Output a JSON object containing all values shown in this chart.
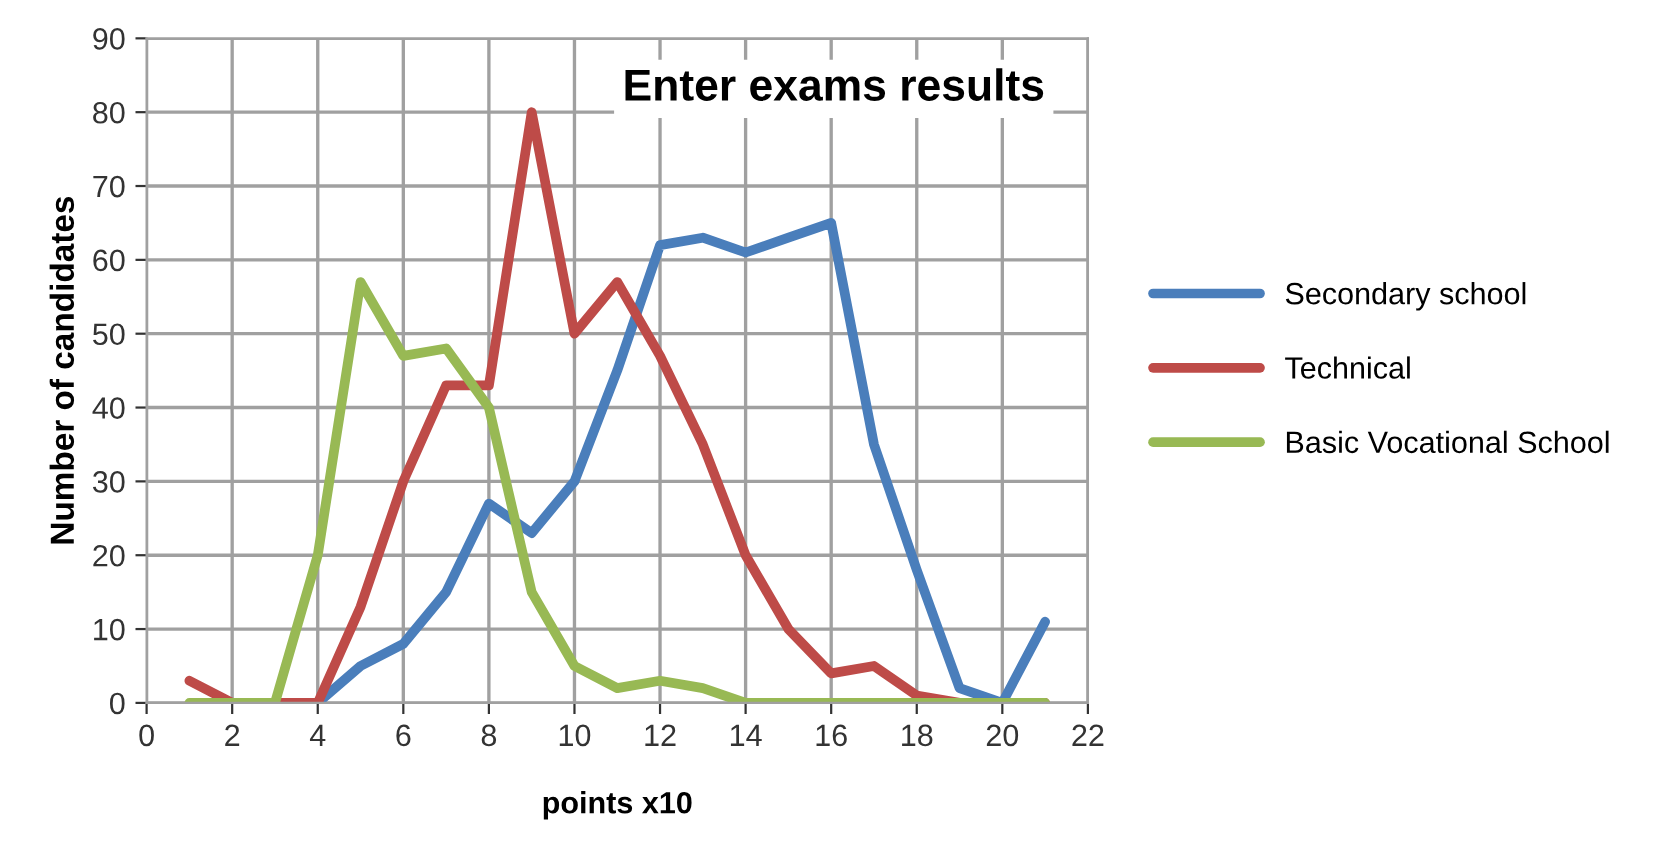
{
  "chart_data": {
    "type": "line",
    "title": "Enter exams results",
    "xlabel": "points x10",
    "ylabel": "Number of candidates",
    "x": [
      1,
      2,
      3,
      4,
      5,
      6,
      7,
      8,
      9,
      10,
      11,
      12,
      13,
      14,
      15,
      16,
      17,
      18,
      19,
      20,
      21
    ],
    "series": [
      {
        "name": "Secondary school",
        "color": "#4a7ebb",
        "values": [
          null,
          null,
          0,
          0,
          5,
          8,
          15,
          27,
          23,
          30,
          45,
          62,
          63,
          61,
          63,
          65,
          35,
          18,
          2,
          0,
          11
        ]
      },
      {
        "name": "Technical",
        "color": "#be4b48",
        "values": [
          3,
          0,
          0,
          0,
          13,
          30,
          43,
          43,
          80,
          50,
          57,
          47,
          35,
          20,
          10,
          4,
          5,
          1,
          0,
          0,
          0
        ]
      },
      {
        "name": "Basic Vocational School",
        "color": "#98b954",
        "values": [
          0,
          0,
          0,
          20,
          57,
          47,
          48,
          40,
          15,
          5,
          2,
          3,
          2,
          0,
          0,
          0,
          0,
          0,
          0,
          0,
          0
        ]
      }
    ],
    "xlim": [
      0,
      22
    ],
    "xticks": [
      0,
      2,
      4,
      6,
      8,
      10,
      12,
      14,
      16,
      18,
      20,
      22
    ],
    "ylim": [
      0,
      90
    ],
    "yticks": [
      0,
      10,
      20,
      30,
      40,
      50,
      60,
      70,
      80,
      90
    ],
    "grid": true,
    "legend": "right",
    "marker": "none",
    "line_style": "solid"
  }
}
